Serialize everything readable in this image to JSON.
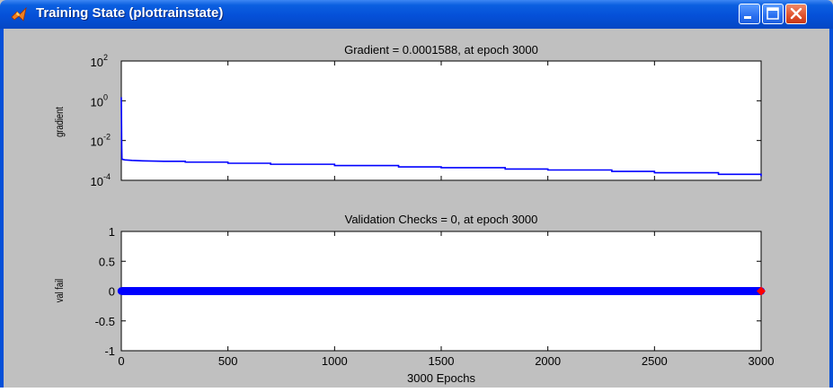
{
  "window": {
    "title": "Training State (plottrainstate)",
    "colors": {
      "titlebar": "#0550d8",
      "figure_bg": "#c0c0c0",
      "series": "#0000ff",
      "marker": "#ff0000"
    }
  },
  "controls": {
    "minimize": "minimize-icon",
    "maximize": "maximize-icon",
    "close": "close-icon"
  },
  "chart_data": [
    {
      "type": "line",
      "title": "Gradient = 0.0001588, at epoch 3000",
      "ylabel": "gradient",
      "yscale": "log",
      "ylim": [
        0.0001,
        100
      ],
      "xlim": [
        0,
        3000
      ],
      "ytick_labels": [
        {
          "base": "10",
          "exp": "2"
        },
        {
          "base": "10",
          "exp": "0"
        },
        {
          "base": "10",
          "exp": "-2"
        },
        {
          "base": "10",
          "exp": "-4"
        }
      ],
      "series": [
        {
          "x": [
            0,
            1,
            2,
            3,
            5,
            10,
            20,
            50,
            100,
            200,
            300,
            500,
            700,
            1000,
            1300,
            1500,
            1800,
            2000,
            2300,
            2500,
            2800,
            3000
          ],
          "y": [
            1.5,
            0.08,
            0.004,
            0.0012,
            0.00115,
            0.0011,
            0.00105,
            0.001,
            0.00095,
            0.0009,
            0.00082,
            0.00072,
            0.00064,
            0.00055,
            0.00047,
            0.00043,
            0.00037,
            0.00033,
            0.00028,
            0.00024,
            0.0002,
            0.0001588
          ]
        }
      ]
    },
    {
      "type": "scatter",
      "title": "Validation Checks = 0, at epoch 3000",
      "ylabel": "val fail",
      "xlabel": "3000 Epochs",
      "ylim": [
        -1,
        1
      ],
      "xlim": [
        0,
        3000
      ],
      "yticks": [
        "1",
        "0.5",
        "0",
        "-0.5",
        "-1"
      ],
      "xticks": [
        "0",
        "500",
        "1000",
        "1500",
        "2000",
        "2500",
        "3000"
      ],
      "series": [
        {
          "x_range": [
            0,
            3000
          ],
          "y": 0
        }
      ],
      "highlight": {
        "x": 3000,
        "y": 0
      }
    }
  ]
}
